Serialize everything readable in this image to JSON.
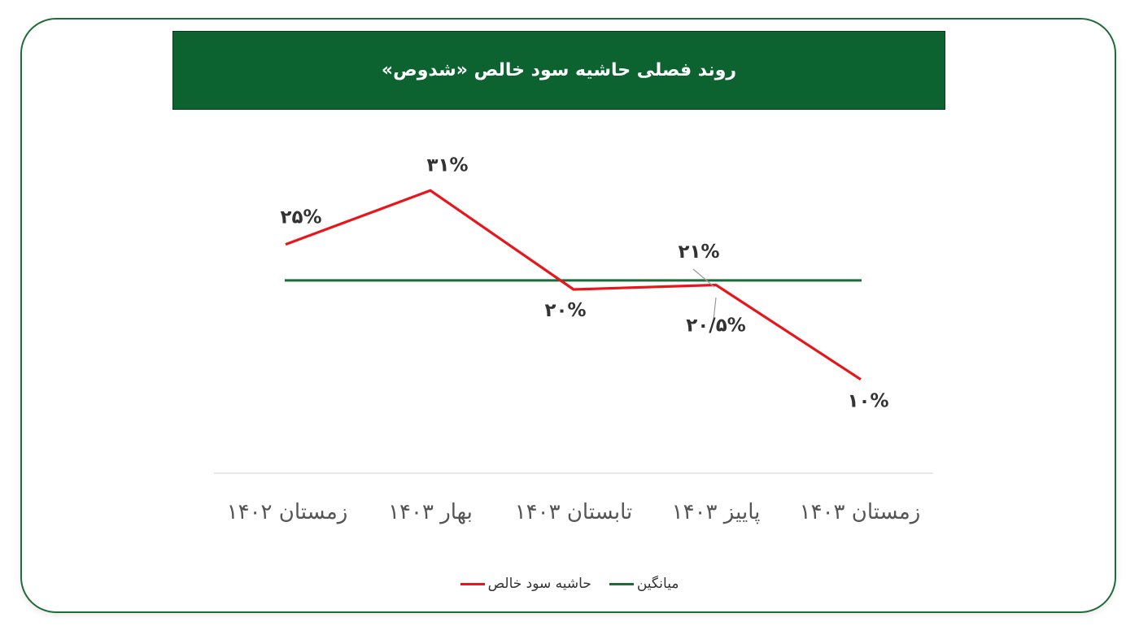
{
  "title": "روند فصلی حاشیه سود خالص «شدوص»",
  "chart_data": {
    "type": "line",
    "categories": [
      "زمستان ۱۴۰۲",
      "بهار ۱۴۰۳",
      "تابستان ۱۴۰۳",
      "پاییز ۱۴۰۳",
      "زمستان ۱۴۰۳"
    ],
    "ylim": [
      5,
      35
    ],
    "grid": false,
    "legend": "bottom",
    "series": [
      {
        "name": "حاشیه سود خالص",
        "color": "#e8161b",
        "values": [
          25,
          31,
          20,
          20.5,
          10
        ],
        "labels": [
          "۲۵%",
          "۳۱%",
          "۲۰%",
          "۲۰/۵%",
          "۱۰%"
        ]
      },
      {
        "name": "میانگین",
        "color": "#1d6b3b",
        "values": [
          21,
          21,
          21,
          21,
          21
        ],
        "labels": [
          "۲۱%"
        ]
      }
    ]
  }
}
